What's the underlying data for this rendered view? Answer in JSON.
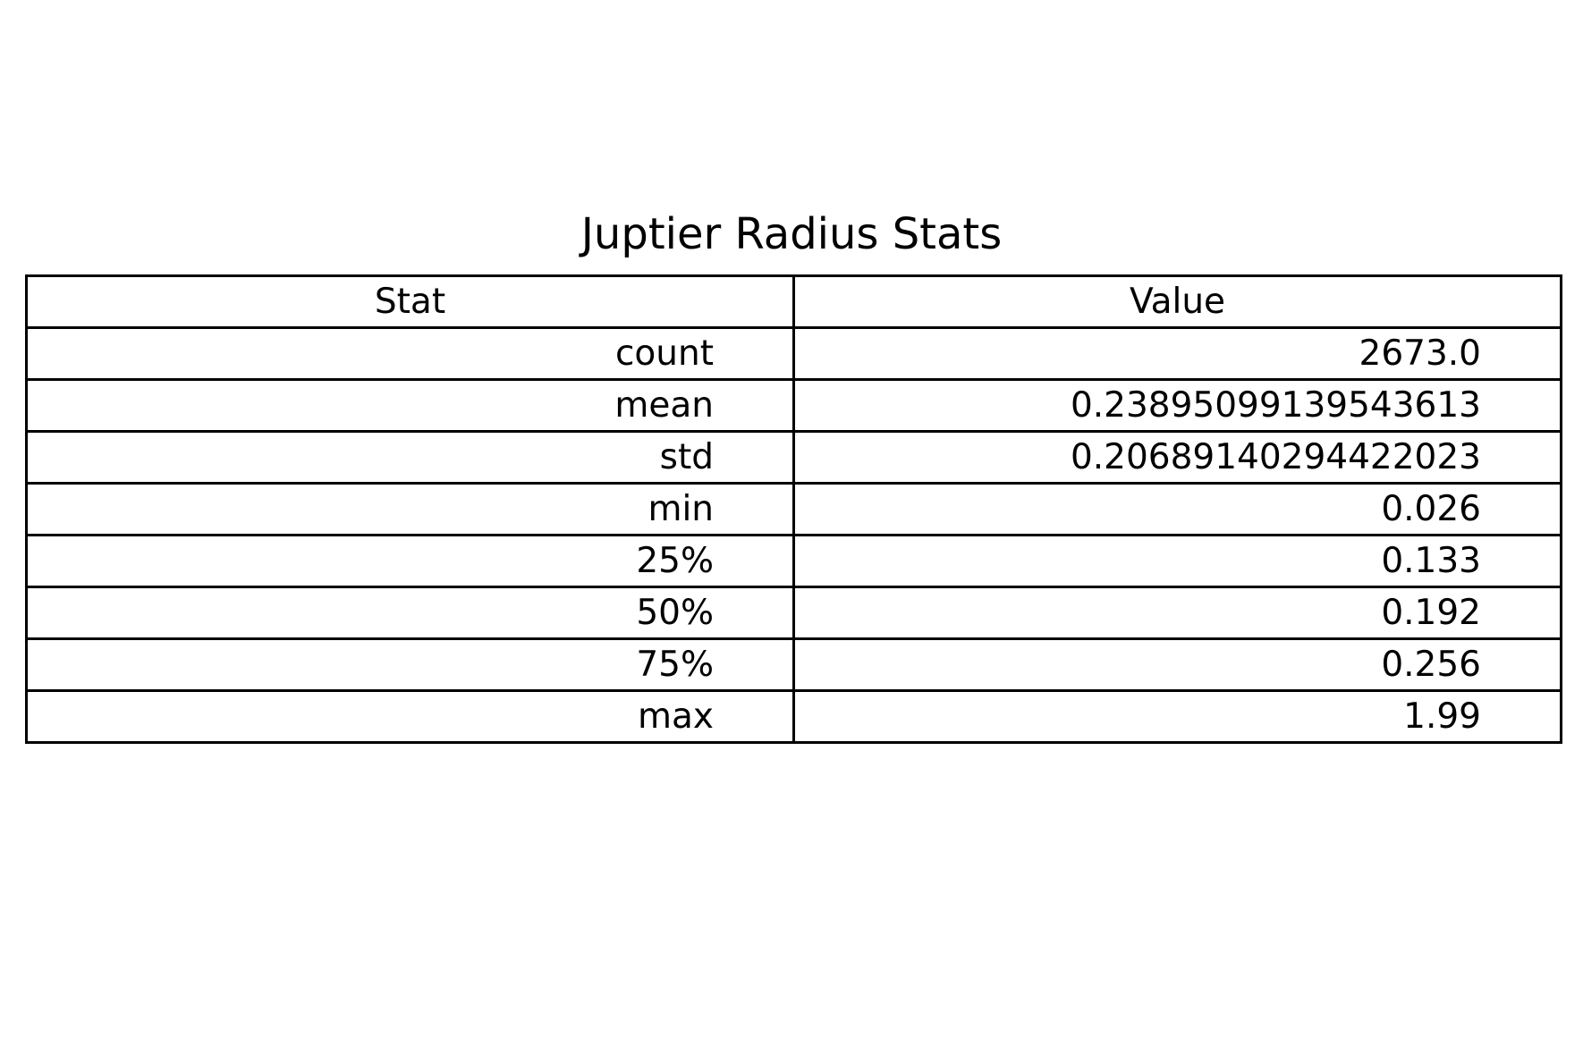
{
  "chart_data": {
    "type": "table",
    "title": "Juptier Radius Stats",
    "columns": [
      "Stat",
      "Value"
    ],
    "rows": [
      {
        "stat": "count",
        "value": "2673.0"
      },
      {
        "stat": "mean",
        "value": "0.23895099139543613"
      },
      {
        "stat": "std",
        "value": "0.20689140294422023"
      },
      {
        "stat": "min",
        "value": "0.026"
      },
      {
        "stat": "25%",
        "value": "0.133"
      },
      {
        "stat": "50%",
        "value": "0.192"
      },
      {
        "stat": "75%",
        "value": "0.256"
      },
      {
        "stat": "max",
        "value": "1.99"
      }
    ]
  }
}
